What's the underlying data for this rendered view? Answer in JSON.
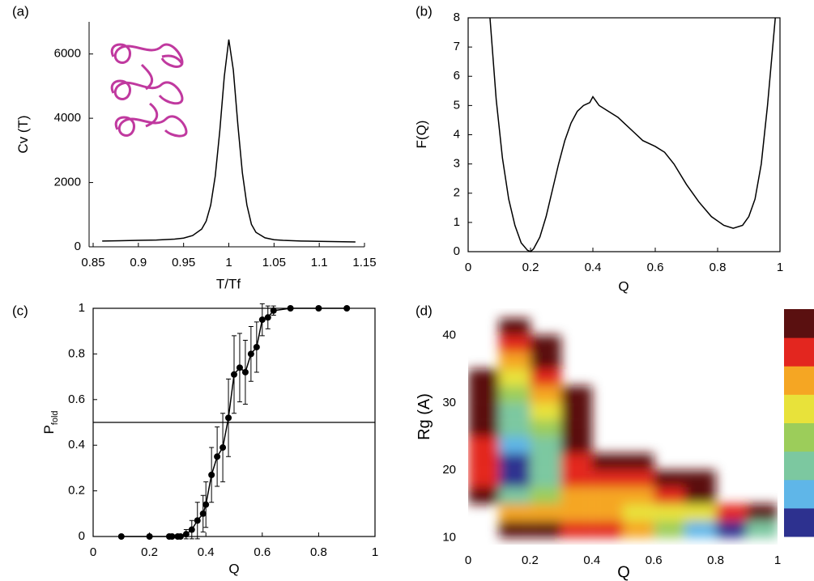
{
  "chart_data": [
    {
      "type": "line",
      "panel_label": "(a)",
      "xlabel": "T/Tf",
      "ylabel": "Cv (T)",
      "x": [
        0.86,
        0.88,
        0.9,
        0.92,
        0.94,
        0.95,
        0.96,
        0.97,
        0.975,
        0.98,
        0.985,
        0.99,
        0.995,
        1.0,
        1.005,
        1.01,
        1.015,
        1.02,
        1.025,
        1.03,
        1.04,
        1.05,
        1.06,
        1.08,
        1.1,
        1.12,
        1.14
      ],
      "series": [
        {
          "color": "#000000",
          "values": [
            180,
            190,
            200,
            210,
            240,
            270,
            350,
            550,
            800,
            1300,
            2200,
            3600,
            5300,
            6450,
            5500,
            3800,
            2300,
            1300,
            700,
            450,
            280,
            220,
            200,
            180,
            170,
            160,
            150
          ]
        }
      ],
      "xlim": [
        0.85,
        1.15
      ],
      "xticks": [
        0.85,
        0.9,
        0.95,
        1,
        1.05,
        1.1,
        1.15
      ],
      "ylim": [
        0,
        7000
      ],
      "yticks": [
        0,
        2000,
        4000,
        6000
      ],
      "frame": false
    },
    {
      "type": "line",
      "panel_label": "(b)",
      "xlabel": "Q",
      "ylabel": "F(Q)",
      "x": [
        0.07,
        0.09,
        0.11,
        0.13,
        0.15,
        0.17,
        0.19,
        0.2,
        0.21,
        0.23,
        0.25,
        0.27,
        0.29,
        0.31,
        0.33,
        0.35,
        0.37,
        0.39,
        0.4,
        0.42,
        0.45,
        0.48,
        0.5,
        0.53,
        0.56,
        0.6,
        0.63,
        0.66,
        0.7,
        0.74,
        0.78,
        0.82,
        0.85,
        0.88,
        0.9,
        0.92,
        0.94,
        0.96,
        0.975,
        0.985
      ],
      "series": [
        {
          "color": "#000000",
          "values": [
            8,
            5.2,
            3.2,
            1.8,
            0.9,
            0.3,
            0.05,
            0,
            0.1,
            0.5,
            1.2,
            2.1,
            3.0,
            3.8,
            4.4,
            4.8,
            5.0,
            5.1,
            5.3,
            5.0,
            4.8,
            4.6,
            4.4,
            4.1,
            3.8,
            3.6,
            3.4,
            3.0,
            2.3,
            1.7,
            1.2,
            0.9,
            0.8,
            0.9,
            1.2,
            1.8,
            3.0,
            5.0,
            6.8,
            8
          ]
        }
      ],
      "xlim": [
        0,
        1
      ],
      "xticks": [
        0,
        0.2,
        0.4,
        0.6,
        0.8,
        1
      ],
      "ylim": [
        0,
        8
      ],
      "yticks": [
        0,
        1,
        2,
        3,
        4,
        5,
        6,
        7,
        8
      ],
      "frame": true
    },
    {
      "type": "errorbar",
      "panel_label": "(c)",
      "xlabel": "Q",
      "ylabel": "P",
      "ylabel_sub": "fold",
      "x": [
        0.1,
        0.2,
        0.27,
        0.28,
        0.3,
        0.31,
        0.33,
        0.35,
        0.37,
        0.39,
        0.4,
        0.42,
        0.44,
        0.46,
        0.48,
        0.5,
        0.52,
        0.54,
        0.56,
        0.58,
        0.6,
        0.62,
        0.64,
        0.7,
        0.8,
        0.9
      ],
      "series": [
        {
          "color": "#000000",
          "values": [
            0,
            0,
            0,
            0,
            0,
            0,
            0.01,
            0.03,
            0.07,
            0.1,
            0.14,
            0.27,
            0.35,
            0.39,
            0.52,
            0.71,
            0.74,
            0.72,
            0.8,
            0.83,
            0.95,
            0.96,
            0.99,
            1,
            1,
            1
          ],
          "errors": [
            0,
            0,
            0,
            0,
            0,
            0,
            0.02,
            0.04,
            0.08,
            0.08,
            0.1,
            0.12,
            0.13,
            0.15,
            0.17,
            0.17,
            0.15,
            0.14,
            0.12,
            0.11,
            0.07,
            0.05,
            0.02,
            0,
            0,
            0
          ]
        }
      ],
      "hline": 0.5,
      "xlim": [
        0,
        1
      ],
      "xticks": [
        0,
        0.2,
        0.4,
        0.6,
        0.8,
        1
      ],
      "ylim": [
        0,
        1
      ],
      "yticks": [
        0,
        0.2,
        0.4,
        0.6,
        0.8,
        1
      ],
      "frame": true
    },
    {
      "type": "heatmap",
      "panel_label": "(d)",
      "xlabel": "Q",
      "ylabel": "Rg (A)",
      "xbins": [
        0,
        0.1,
        0.2,
        0.3,
        0.4,
        0.5,
        0.6,
        0.7,
        0.8,
        0.9,
        1
      ],
      "ybins": [
        10,
        12.5,
        15,
        17.5,
        20,
        22.5,
        25,
        27.5,
        30,
        32.5,
        35,
        37.5,
        40,
        42.5
      ],
      "values": [
        [
          null,
          8,
          8,
          7,
          7,
          6,
          4,
          2,
          1,
          3
        ],
        [
          null,
          6,
          6,
          6,
          6,
          5,
          5,
          5,
          7,
          8
        ],
        [
          8,
          3,
          4,
          6,
          6,
          6,
          7,
          8,
          null,
          null
        ],
        [
          7,
          1,
          3,
          7,
          7,
          7,
          8,
          8,
          null,
          null
        ],
        [
          7,
          1,
          3,
          7,
          8,
          8,
          null,
          null,
          null,
          null
        ],
        [
          7,
          2,
          3,
          8,
          null,
          null,
          null,
          null,
          null,
          null
        ],
        [
          8,
          3,
          4,
          8,
          null,
          null,
          null,
          null,
          null,
          null
        ],
        [
          8,
          3,
          5,
          8,
          null,
          null,
          null,
          null,
          null,
          null
        ],
        [
          8,
          4,
          6,
          8,
          null,
          null,
          null,
          null,
          null,
          null
        ],
        [
          8,
          5,
          7,
          null,
          null,
          null,
          null,
          null,
          null,
          null
        ],
        [
          null,
          6,
          8,
          null,
          null,
          null,
          null,
          null,
          null,
          null
        ],
        [
          null,
          7,
          8,
          null,
          null,
          null,
          null,
          null,
          null,
          null
        ],
        [
          null,
          8,
          null,
          null,
          null,
          null,
          null,
          null,
          null,
          null
        ]
      ],
      "colors": [
        "#2d318f",
        "#5fb6e8",
        "#7cc8a0",
        "#9ccd5a",
        "#e8e23a",
        "#f5a623",
        "#e3261f",
        "#5a1010"
      ],
      "xlim": [
        0,
        1
      ],
      "xticks": [
        0,
        0.2,
        0.4,
        0.6,
        0.8,
        1
      ],
      "ylim": [
        9,
        44
      ],
      "yticks": [
        10,
        20,
        30,
        40
      ],
      "frame": false
    }
  ]
}
